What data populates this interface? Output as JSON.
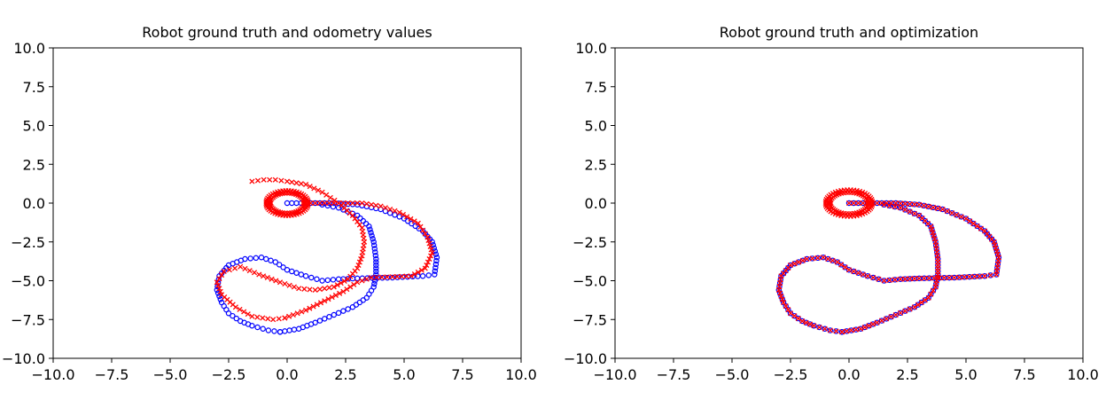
{
  "figure": {
    "colors": {
      "ground_truth": "#0000ff",
      "estimate": "#ff0000"
    },
    "markers": {
      "ground_truth": "circle",
      "estimate": "x"
    }
  },
  "chart_data": [
    {
      "type": "scatter",
      "title": "Robot ground truth and odometry values",
      "xlabel": "",
      "ylabel": "",
      "xlim": [
        -10.0,
        10.0
      ],
      "ylim": [
        -10.0,
        10.0
      ],
      "xticks": [
        "−10.0",
        "−7.5",
        "−5.0",
        "−2.5",
        "0.0",
        "2.5",
        "5.0",
        "7.5",
        "10.0"
      ],
      "yticks": [
        "10.0",
        "7.5",
        "5.0",
        "2.5",
        "0.0",
        "−2.5",
        "−5.0",
        "−7.5",
        "−10.0"
      ],
      "grid": false,
      "series": [
        {
          "color": "#0000ff",
          "marker": "circle",
          "x": [
            0.0,
            1.0,
            2.0,
            3.0,
            4.0,
            5.0,
            5.8,
            6.2,
            6.4,
            6.3,
            5.8,
            4.5,
            3.0,
            2.2,
            1.5,
            0.8,
            0.0,
            -0.5,
            -1.1,
            -1.8,
            -2.5,
            -2.9,
            -3.0,
            -2.8,
            -2.5,
            -2.0,
            -1.5,
            -0.8,
            -0.3
          ],
          "y": [
            0.0,
            0.0,
            0.0,
            -0.1,
            -0.4,
            -1.0,
            -1.8,
            -2.5,
            -3.5,
            -4.6,
            -4.7,
            -4.8,
            -4.85,
            -4.9,
            -5.0,
            -4.7,
            -4.3,
            -3.8,
            -3.5,
            -3.6,
            -4.0,
            -4.7,
            -5.6,
            -6.4,
            -7.1,
            -7.6,
            -7.9,
            -8.2,
            -8.3
          ]
        },
        {
          "color": "#0000ff",
          "marker": "circle",
          "x": [
            -0.3,
            0.5,
            1.2,
            2.0,
            2.8,
            3.4,
            3.7,
            3.8,
            3.8,
            3.7,
            3.5,
            3.0,
            2.2,
            1.5
          ],
          "y": [
            -8.3,
            -8.1,
            -7.7,
            -7.2,
            -6.7,
            -6.1,
            -5.4,
            -4.6,
            -3.6,
            -2.5,
            -1.5,
            -0.8,
            -0.3,
            -0.1
          ]
        },
        {
          "color": "#ff0000",
          "marker": "x",
          "x": [
            -1.5,
            -1.0,
            -0.5,
            0.0,
            0.8,
            1.5,
            2.2,
            2.8,
            3.2,
            3.3,
            3.2,
            3.0,
            2.6,
            2.0,
            1.2,
            0.5,
            -0.3,
            -1.2,
            -2.0,
            -2.7,
            -3.0,
            -2.8,
            -2.2,
            -1.5,
            -0.6,
            -0.1
          ],
          "y": [
            1.4,
            1.5,
            1.5,
            1.4,
            1.2,
            0.7,
            0.0,
            -0.8,
            -1.6,
            -2.5,
            -3.4,
            -4.2,
            -4.9,
            -5.4,
            -5.6,
            -5.5,
            -5.1,
            -4.6,
            -4.1,
            -4.4,
            -5.1,
            -5.9,
            -6.7,
            -7.3,
            -7.5,
            -7.4
          ]
        },
        {
          "color": "#ff0000",
          "marker": "x",
          "x": [
            -0.1,
            0.8,
            1.6,
            2.4,
            3.0,
            3.6,
            4.5,
            5.3,
            5.9,
            6.2,
            6.0,
            5.6,
            4.8,
            4.0,
            3.2,
            2.4,
            1.6,
            0.8
          ],
          "y": [
            -7.4,
            -6.9,
            -6.3,
            -5.7,
            -5.1,
            -4.8,
            -4.75,
            -4.7,
            -4.2,
            -3.2,
            -2.2,
            -1.3,
            -0.6,
            -0.2,
            0.0,
            0.0,
            0.0,
            0.0
          ]
        },
        {
          "color": "#ff0000",
          "marker": "x",
          "shape": "loop",
          "cx": 0.0,
          "cy": 0.0,
          "rx": 0.9,
          "ry": 0.8
        }
      ]
    },
    {
      "type": "scatter",
      "title": "Robot ground truth and optimization",
      "xlabel": "",
      "ylabel": "",
      "xlim": [
        -10.0,
        10.0
      ],
      "ylim": [
        -10.0,
        10.0
      ],
      "xticks": [
        "−10.0",
        "−7.5",
        "−5.0",
        "−2.5",
        "0.0",
        "2.5",
        "5.0",
        "7.5",
        "10.0"
      ],
      "yticks": [
        "10.0",
        "7.5",
        "5.0",
        "2.5",
        "0.0",
        "−2.5",
        "−5.0",
        "−7.5",
        "−10.0"
      ],
      "grid": false,
      "series": [
        {
          "color": "#0000ff",
          "marker": "circle",
          "x": [
            0.0,
            1.0,
            2.0,
            3.0,
            4.0,
            5.0,
            5.8,
            6.2,
            6.4,
            6.3,
            5.8,
            4.5,
            3.0,
            2.2,
            1.5,
            0.8,
            0.0,
            -0.5,
            -1.1,
            -1.8,
            -2.5,
            -2.9,
            -3.0,
            -2.8,
            -2.5,
            -2.0,
            -1.5,
            -0.8,
            -0.3
          ],
          "y": [
            0.0,
            0.0,
            0.0,
            -0.1,
            -0.4,
            -1.0,
            -1.8,
            -2.5,
            -3.5,
            -4.6,
            -4.7,
            -4.8,
            -4.85,
            -4.9,
            -5.0,
            -4.7,
            -4.3,
            -3.8,
            -3.5,
            -3.6,
            -4.0,
            -4.7,
            -5.6,
            -6.4,
            -7.1,
            -7.6,
            -7.9,
            -8.2,
            -8.3
          ]
        },
        {
          "color": "#0000ff",
          "marker": "circle",
          "x": [
            -0.3,
            0.5,
            1.2,
            2.0,
            2.8,
            3.4,
            3.7,
            3.8,
            3.8,
            3.7,
            3.5,
            3.0,
            2.2,
            1.5
          ],
          "y": [
            -8.3,
            -8.1,
            -7.7,
            -7.2,
            -6.7,
            -6.1,
            -5.4,
            -4.6,
            -3.6,
            -2.5,
            -1.5,
            -0.8,
            -0.3,
            -0.1
          ]
        },
        {
          "color": "#ff0000",
          "marker": "x",
          "x": [
            0.0,
            1.0,
            2.0,
            3.0,
            4.0,
            5.0,
            5.8,
            6.2,
            6.4,
            6.3,
            5.8,
            4.5,
            3.0,
            2.2,
            1.5,
            0.8,
            0.0,
            -0.5,
            -1.1,
            -1.8,
            -2.5,
            -2.9,
            -3.0,
            -2.8,
            -2.5,
            -2.0,
            -1.5,
            -0.8,
            -0.3
          ],
          "y": [
            0.0,
            0.0,
            0.0,
            -0.1,
            -0.4,
            -1.0,
            -1.8,
            -2.5,
            -3.5,
            -4.6,
            -4.7,
            -4.8,
            -4.85,
            -4.9,
            -5.0,
            -4.7,
            -4.3,
            -3.8,
            -3.5,
            -3.6,
            -4.0,
            -4.7,
            -5.6,
            -6.4,
            -7.1,
            -7.6,
            -7.9,
            -8.2,
            -8.3
          ]
        },
        {
          "color": "#ff0000",
          "marker": "x",
          "x": [
            -0.3,
            0.5,
            1.2,
            2.0,
            2.8,
            3.4,
            3.7,
            3.8,
            3.8,
            3.7,
            3.5,
            3.0,
            2.2,
            1.5
          ],
          "y": [
            -8.3,
            -8.1,
            -7.7,
            -7.2,
            -6.7,
            -6.1,
            -5.4,
            -4.6,
            -3.6,
            -2.5,
            -1.5,
            -0.8,
            -0.3,
            -0.1
          ]
        },
        {
          "color": "#ff0000",
          "marker": "x",
          "shape": "loop",
          "cx": 0.0,
          "cy": 0.0,
          "rx": 1.0,
          "ry": 0.85
        }
      ]
    }
  ]
}
